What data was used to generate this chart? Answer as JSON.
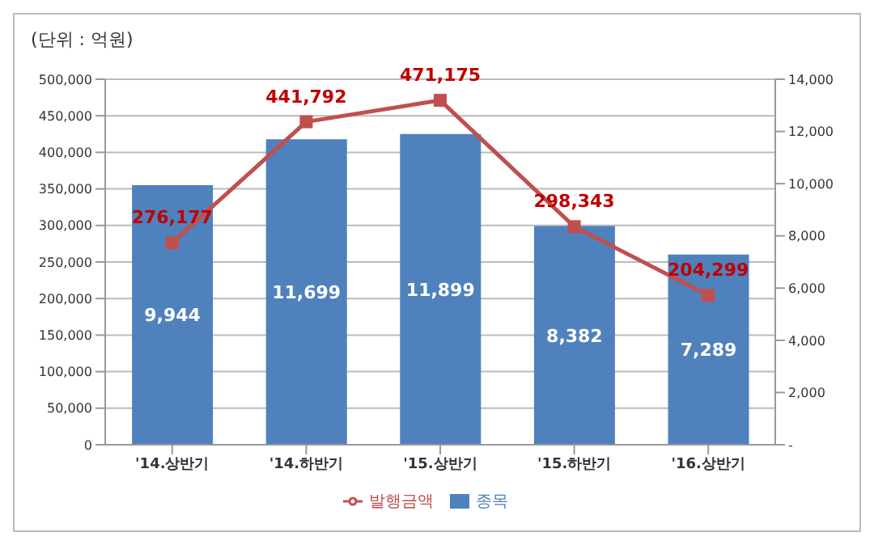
{
  "chart_data": {
    "type": "bar",
    "annotations": [
      "(단위 : 억원)"
    ],
    "categories": [
      "'14.상반기",
      "'14.하반기",
      "'15.상반기",
      "'15.하반기",
      "'16.상반기"
    ],
    "series": [
      {
        "name": "종목",
        "axis": "y2",
        "color": "#4f81bd",
        "values": [
          9944,
          11699,
          11899,
          8382,
          7289
        ],
        "value_labels": [
          "9,944",
          "11,699",
          "11,899",
          "8,382",
          "7,289"
        ]
      },
      {
        "name": "발행금액",
        "type": "line",
        "axis": "y",
        "color": "#c0504d",
        "values": [
          276177,
          441792,
          471175,
          298343,
          204299
        ],
        "value_labels": [
          "276,177",
          "441,792",
          "471,175",
          "298,343",
          "204,299"
        ]
      }
    ],
    "ylim": [
      0,
      500000
    ],
    "yticks": [
      {
        "value": 0,
        "label": "0"
      },
      {
        "value": 50000,
        "label": "50,000"
      },
      {
        "value": 100000,
        "label": "100,000"
      },
      {
        "value": 150000,
        "label": "150,000"
      },
      {
        "value": 200000,
        "label": "200,000"
      },
      {
        "value": 250000,
        "label": "250,000"
      },
      {
        "value": 300000,
        "label": "300,000"
      },
      {
        "value": 350000,
        "label": "350,000"
      },
      {
        "value": 400000,
        "label": "400,000"
      },
      {
        "value": 450000,
        "label": "450,000"
      },
      {
        "value": 500000,
        "label": "500,000"
      }
    ],
    "y2lim": [
      0,
      14000
    ],
    "y2ticks": [
      {
        "value": 0,
        "label": "-"
      },
      {
        "value": 2000,
        "label": "2,000"
      },
      {
        "value": 4000,
        "label": "4,000"
      },
      {
        "value": 6000,
        "label": "6,000"
      },
      {
        "value": 8000,
        "label": "8,000"
      },
      {
        "value": 10000,
        "label": "10,000"
      },
      {
        "value": 12000,
        "label": "12,000"
      },
      {
        "value": 14000,
        "label": "14,000"
      }
    ],
    "grid": "y",
    "legend": "bottom",
    "marker": "square"
  }
}
